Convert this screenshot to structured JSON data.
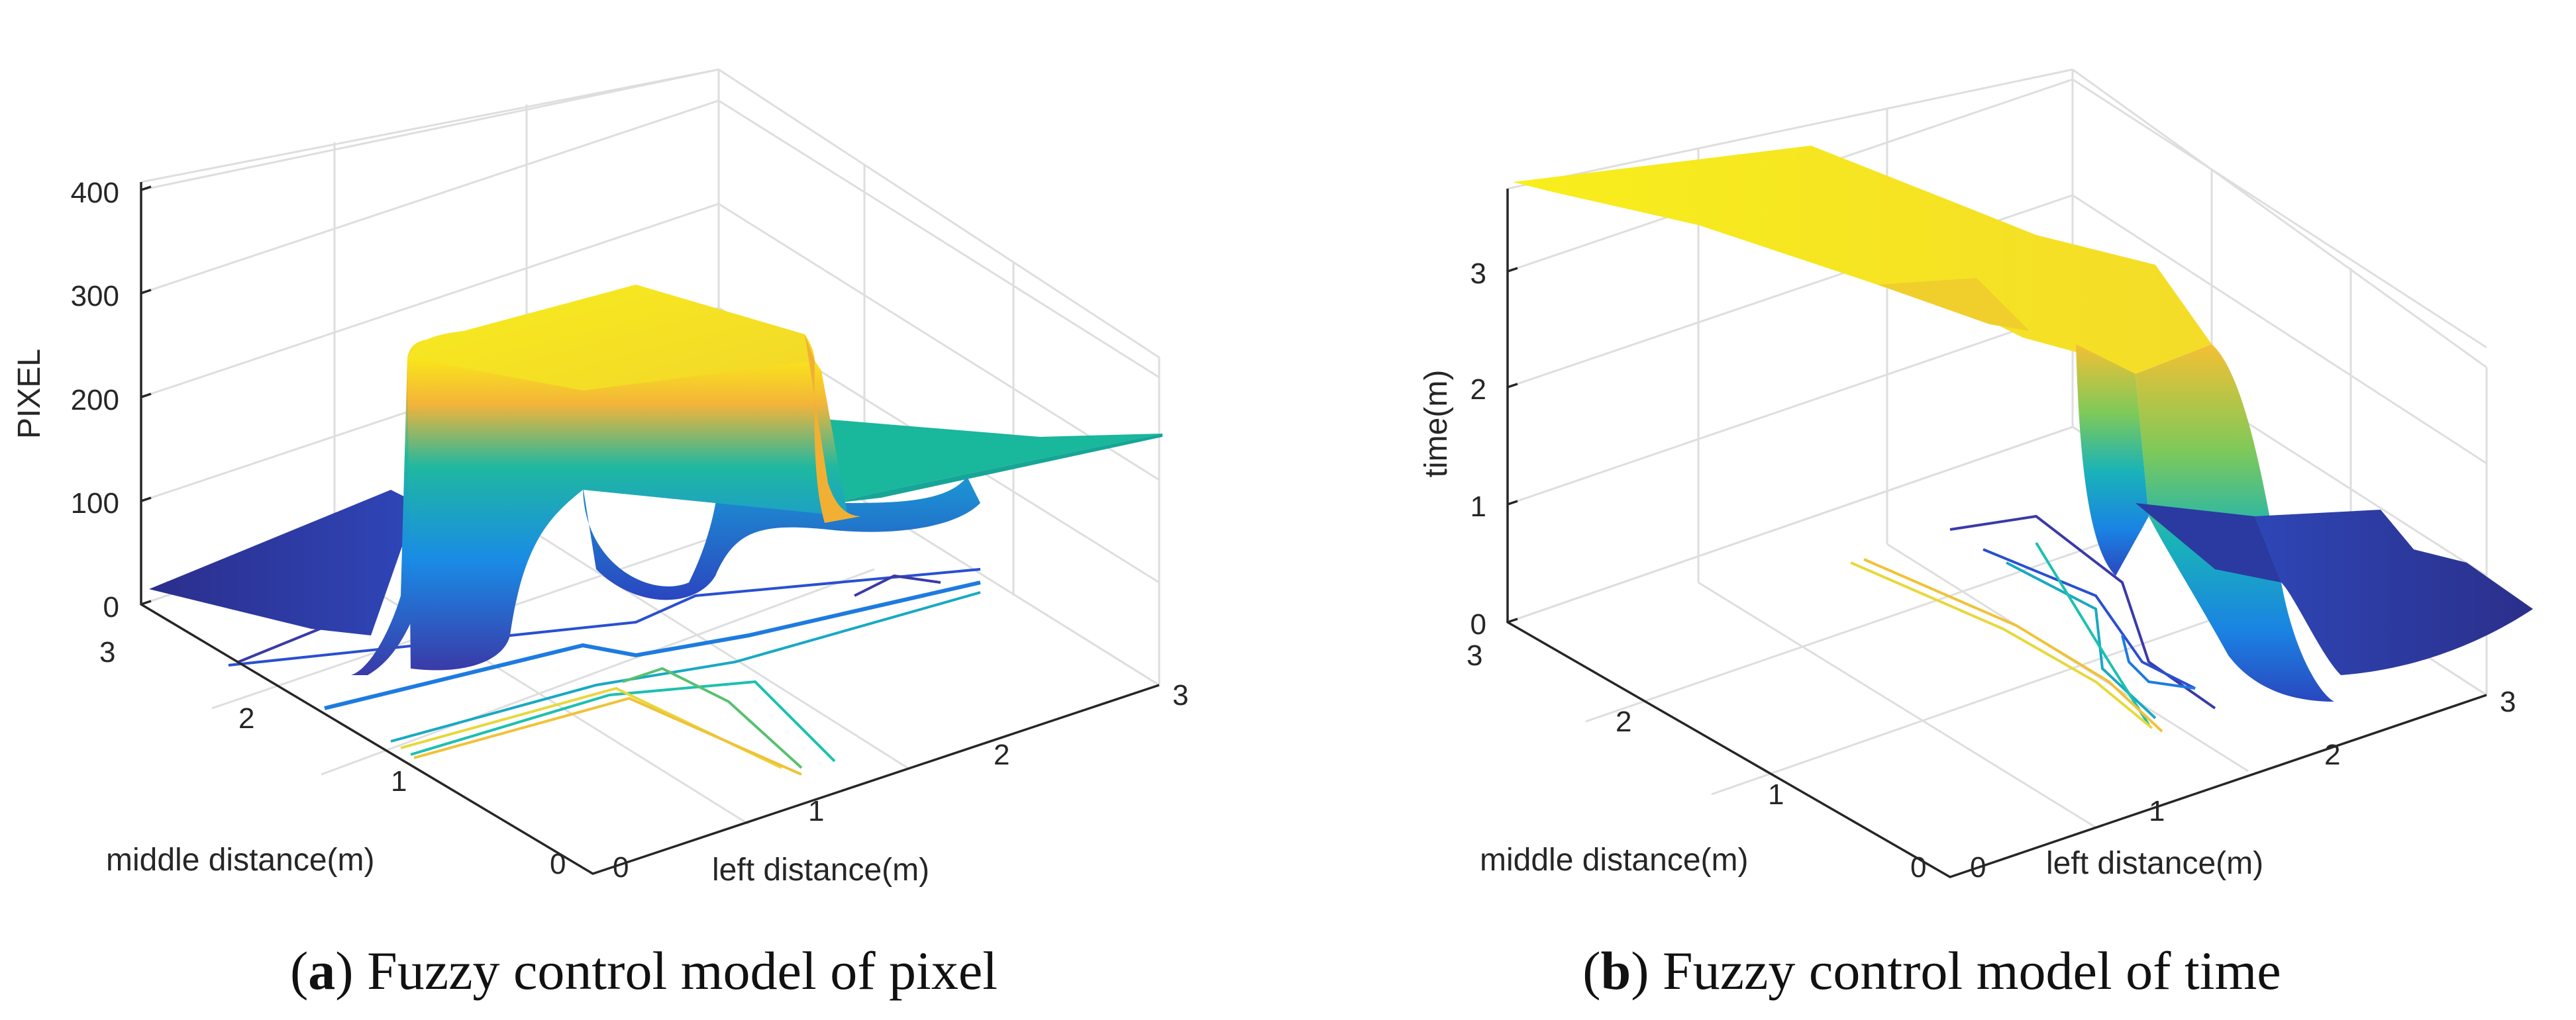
{
  "chart_data": [
    {
      "type": "surface",
      "panel_id": "a",
      "caption_letter": "a",
      "caption_text": "Fuzzy control model of pixel",
      "xlabel": "left distance(m)",
      "ylabel": "middle distance(m)",
      "zlabel": "PIXEL",
      "x_ticks": [
        "0",
        "1",
        "2",
        "3"
      ],
      "y_ticks": [
        "0",
        "1",
        "2",
        "3"
      ],
      "z_ticks": [
        "0",
        "100",
        "200",
        "300",
        "400"
      ],
      "xlim": [
        0,
        3
      ],
      "ylim": [
        0,
        3
      ],
      "zlim": [
        0,
        400
      ],
      "colormap": "parula",
      "contour_projection": true,
      "approx_levels": {
        "low": 50,
        "mid": 190,
        "high": 320
      }
    },
    {
      "type": "surface",
      "panel_id": "b",
      "caption_letter": "b",
      "caption_text": "Fuzzy control model of time",
      "xlabel": "left distance(m)",
      "ylabel": "middle distance(m)",
      "zlabel": "time(m)",
      "x_ticks": [
        "0",
        "1",
        "2",
        "3"
      ],
      "y_ticks": [
        "0",
        "1",
        "2",
        "3"
      ],
      "z_ticks": [
        "0",
        "1",
        "2",
        "3"
      ],
      "xlim": [
        0,
        3
      ],
      "ylim": [
        0,
        3
      ],
      "zlim": [
        0,
        3.7
      ],
      "colormap": "parula",
      "contour_projection": true,
      "approx_levels": {
        "low": 0.5,
        "mid": 1.5,
        "high": 3.2
      }
    }
  ],
  "colors": {
    "parula_low": "#2b2f8a",
    "parula_midlow": "#1f7fe0",
    "parula_mid": "#18b7a8",
    "parula_midhigh": "#7ecb4e",
    "parula_high": "#f9f316",
    "gridline": "#dedede",
    "axis": "#262626"
  }
}
